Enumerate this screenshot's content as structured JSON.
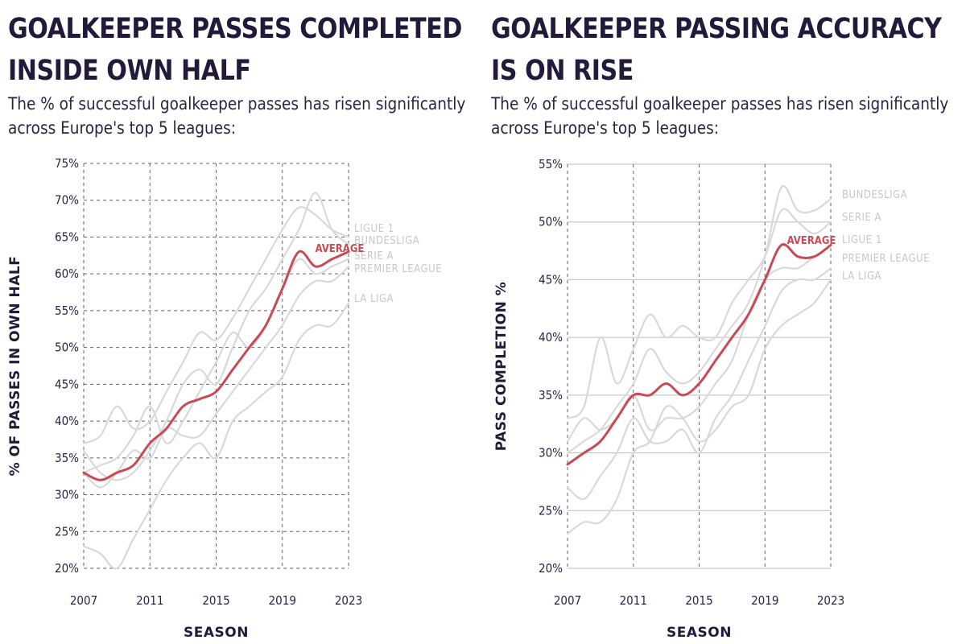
{
  "chart_data": [
    {
      "type": "line",
      "title": "GOALKEEPER PASSES COMPLETED INSIDE OWN HALF",
      "subtitle": "The % of successful goalkeeper passes has risen significantly across Europe's top 5 leagues:",
      "xlabel": "SEASON",
      "ylabel": "% OF PASSES IN OWN HALF",
      "x": [
        2007,
        2008,
        2009,
        2010,
        2011,
        2012,
        2013,
        2014,
        2015,
        2016,
        2017,
        2018,
        2019,
        2020,
        2021,
        2022,
        2023
      ],
      "xticks": [
        2007,
        2011,
        2015,
        2019,
        2023
      ],
      "xlim": [
        2007,
        2023
      ],
      "ylim": [
        20,
        75
      ],
      "yticks": [
        20,
        25,
        30,
        35,
        40,
        45,
        50,
        55,
        60,
        65,
        70,
        75
      ],
      "ytick_suffix": "%",
      "grid": "dashed",
      "series": [
        {
          "name": "LIGUE 1",
          "color": "#d9d9d9",
          "values": [
            37,
            38,
            42,
            39,
            40,
            44,
            48,
            52,
            51,
            54,
            58,
            62,
            66,
            69,
            68,
            66,
            65
          ]
        },
        {
          "name": "BUNDESLIGA",
          "color": "#d9d9d9",
          "values": [
            36,
            33,
            32,
            33,
            36,
            40,
            45,
            47,
            45,
            50,
            55,
            58,
            62,
            66,
            71,
            66,
            64
          ]
        },
        {
          "name": "SERIE A",
          "color": "#d9d9d9",
          "values": [
            33,
            34,
            35,
            38,
            42,
            37,
            40,
            44,
            48,
            52,
            50,
            53,
            58,
            62,
            60,
            61,
            62
          ]
        },
        {
          "name": "PREMIER LEAGUE",
          "color": "#d9d9d9",
          "values": [
            33,
            31,
            33,
            36,
            35,
            39,
            38,
            38,
            41,
            44,
            47,
            50,
            53,
            57,
            59,
            59,
            61
          ]
        },
        {
          "name": "LA LIGA",
          "color": "#d9d9d9",
          "values": [
            23,
            22,
            20,
            24,
            28,
            32,
            35,
            37,
            35,
            40,
            42,
            44,
            46,
            51,
            53,
            53,
            56
          ]
        },
        {
          "name": "AVERAGE",
          "color": "#c94a55",
          "values": [
            33,
            32,
            33,
            34,
            37,
            39,
            42,
            43,
            44,
            47,
            50,
            53,
            58,
            63,
            61,
            62,
            63
          ]
        }
      ]
    },
    {
      "type": "line",
      "title": "GOALKEEPER PASSING ACCURACY IS ON RISE",
      "subtitle": "The % of successful goalkeeper passes has risen significantly across Europe's top 5 leagues:",
      "xlabel": "SEASON",
      "ylabel": "PASS COMPLETION %",
      "x": [
        2007,
        2008,
        2009,
        2010,
        2011,
        2012,
        2013,
        2014,
        2015,
        2016,
        2017,
        2018,
        2019,
        2020,
        2021,
        2022,
        2023
      ],
      "xticks": [
        2007,
        2011,
        2015,
        2019,
        2023
      ],
      "xlim": [
        2007,
        2023
      ],
      "ylim": [
        20,
        55
      ],
      "yticks": [
        20,
        25,
        30,
        35,
        40,
        45,
        50,
        55
      ],
      "ytick_suffix": "%",
      "grid": "horizontal solid, vertical dashed",
      "series": [
        {
          "name": "BUNDESLIGA",
          "color": "#d9d9d9",
          "values": [
            30,
            31,
            32,
            34,
            36,
            39,
            37,
            36,
            37,
            39,
            41,
            43,
            47,
            53,
            51,
            51,
            52
          ]
        },
        {
          "name": "SERIE A",
          "color": "#d9d9d9",
          "values": [
            33,
            34,
            40,
            36,
            39,
            42,
            40,
            41,
            40,
            40,
            43,
            45,
            47,
            51,
            50,
            49,
            50
          ]
        },
        {
          "name": "LIGUE 1",
          "color": "#d9d9d9",
          "values": [
            31,
            33,
            32,
            33,
            35,
            32,
            33,
            33,
            34,
            36,
            38,
            42,
            45,
            46,
            46,
            47,
            48
          ]
        },
        {
          "name": "PREMIER LEAGUE",
          "color": "#d9d9d9",
          "values": [
            27,
            26,
            28,
            30,
            33,
            31,
            31,
            32,
            30,
            33,
            35,
            38,
            41,
            44,
            45,
            45,
            46
          ]
        },
        {
          "name": "LA LIGA",
          "color": "#d9d9d9",
          "values": [
            23,
            24,
            24,
            26,
            30,
            31,
            34,
            33,
            31,
            32,
            34,
            35,
            39,
            41,
            42,
            43,
            45
          ]
        },
        {
          "name": "AVERAGE",
          "color": "#c94a55",
          "values": [
            29,
            30,
            31,
            33,
            35,
            35,
            36,
            35,
            36,
            38,
            40,
            42,
            45,
            48,
            47,
            47,
            48
          ]
        }
      ]
    }
  ]
}
